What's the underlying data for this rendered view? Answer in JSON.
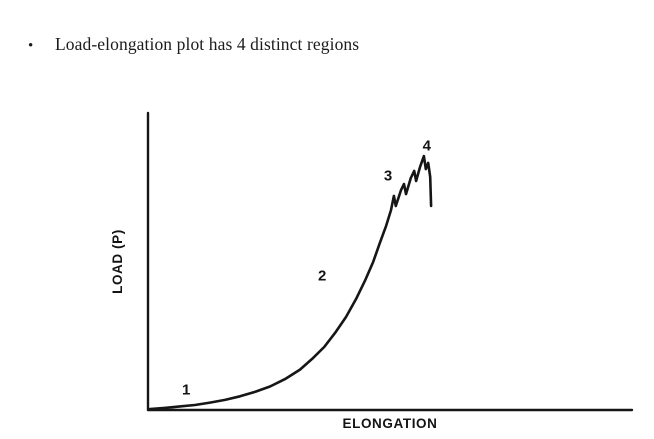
{
  "page": {
    "background": "#ffffff",
    "ink_color": "#161616"
  },
  "bullet": {
    "marker": "•",
    "text": "Load-elongation plot has 4 distinct regions"
  },
  "chart_data": {
    "type": "line",
    "title": "",
    "xlabel": "ELONGATION",
    "ylabel": "LOAD (P)",
    "xlim": [
      0,
      100
    ],
    "ylim": [
      0,
      100
    ],
    "grid": false,
    "tick_labels": "none",
    "legend": "none",
    "line_color": "#161616",
    "description": "Load-elongation curve with 4 distinct regions: flat toe (1), rising nonlinear slope (2), jagged yield peaks (3), ultimate peak then sharp failure drop (4). Axes unlabeled numerically; units arbitrary 0-100.",
    "series": [
      {
        "name": "load-elongation curve",
        "points": [
          [
            0.4,
            0.3
          ],
          [
            3.5,
            0.7
          ],
          [
            6.6,
            1.2
          ],
          [
            9.7,
            1.7
          ],
          [
            12.8,
            2.5
          ],
          [
            15.9,
            3.4
          ],
          [
            19.0,
            4.6
          ],
          [
            22.1,
            6.1
          ],
          [
            25.2,
            7.9
          ],
          [
            28.3,
            10.4
          ],
          [
            31.4,
            13.6
          ],
          [
            33.9,
            17.2
          ],
          [
            36.4,
            21.2
          ],
          [
            38.8,
            26.3
          ],
          [
            40.9,
            31.3
          ],
          [
            43.0,
            37.4
          ],
          [
            44.8,
            43.4
          ],
          [
            46.5,
            49.8
          ],
          [
            47.9,
            56.2
          ],
          [
            49.2,
            62.0
          ],
          [
            50.2,
            67.3
          ],
          [
            50.8,
            72.1
          ],
          [
            51.2,
            68.7
          ],
          [
            52.3,
            74.1
          ],
          [
            52.9,
            76.1
          ],
          [
            53.3,
            72.7
          ],
          [
            54.3,
            78.1
          ],
          [
            55.0,
            80.5
          ],
          [
            55.4,
            77.1
          ],
          [
            56.2,
            81.8
          ],
          [
            57.0,
            85.5
          ],
          [
            57.4,
            81.1
          ],
          [
            57.9,
            83.2
          ],
          [
            58.3,
            78.5
          ],
          [
            58.5,
            68.7
          ]
        ]
      }
    ],
    "annotations": [
      {
        "label": "1",
        "x": 7.9,
        "y": 6.7
      },
      {
        "label": "2",
        "x": 36.0,
        "y": 45.1
      },
      {
        "label": "3",
        "x": 49.6,
        "y": 78.8
      },
      {
        "label": "4",
        "x": 57.6,
        "y": 88.9
      }
    ]
  }
}
